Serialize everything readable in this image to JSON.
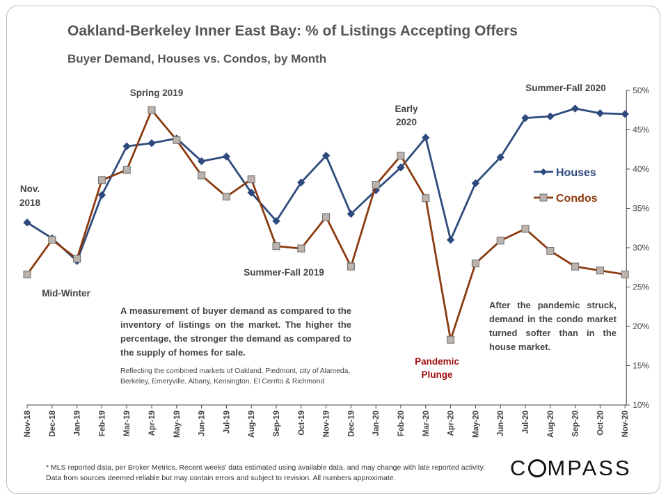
{
  "header": {
    "title": "Oakland-Berkeley Inner East Bay: % of Listings Accepting Offers",
    "subtitle": "Buyer Demand, Houses vs. Condos, by Month"
  },
  "chart_data": {
    "type": "line",
    "title": "Oakland-Berkeley Inner East Bay: % of Listings Accepting Offers",
    "subtitle": "Buyer Demand, Houses vs. Condos, by Month",
    "categories": [
      "Nov-18",
      "Dec-18",
      "Jan-19",
      "Feb-19",
      "Mar-19",
      "Apr-19",
      "May-19",
      "Jun-19",
      "Jul-19",
      "Aug-19",
      "Sep-19",
      "Oct-19",
      "Nov-19",
      "Dec-19",
      "Jan-20",
      "Feb-20",
      "Mar-20",
      "Apr-20",
      "May-20",
      "Jun-20",
      "Jul-20",
      "Aug-20",
      "Sep-20",
      "Oct-20",
      "Nov-20"
    ],
    "series": [
      {
        "name": "Houses",
        "color": "#2e4a7d",
        "marker": "diamond",
        "values": [
          33.2,
          31.2,
          28.3,
          36.7,
          42.9,
          43.3,
          43.9,
          41.0,
          41.6,
          37.0,
          33.4,
          38.3,
          41.7,
          34.3,
          37.3,
          40.2,
          44.0,
          31.0,
          38.2,
          41.5,
          46.5,
          46.7,
          47.7,
          47.1,
          47.0
        ]
      },
      {
        "name": "Condos",
        "color": "#8b3a0f",
        "marker": "square",
        "values": [
          26.6,
          31.0,
          28.6,
          38.6,
          39.9,
          47.5,
          43.7,
          39.2,
          36.5,
          38.7,
          30.2,
          29.9,
          33.9,
          27.6,
          38.0,
          41.7,
          36.3,
          18.3,
          28.0,
          30.9,
          32.4,
          29.6,
          27.6,
          27.1,
          26.6
        ]
      }
    ],
    "y_ticks": [
      "10%",
      "15%",
      "20%",
      "25%",
      "30%",
      "35%",
      "40%",
      "45%",
      "50%"
    ],
    "ylim": [
      10,
      50
    ],
    "y_axis_side": "right",
    "grid": false,
    "legend_placement": "right",
    "annotations": {
      "spring_2019": "Spring 2019",
      "nov_2018_line1": "Nov.",
      "nov_2018_line2": "2018",
      "mid_winter": "Mid-Winter",
      "early_2020_line1": "Early",
      "early_2020_line2": "2020",
      "summer_fall_2020": "Summer-Fall 2020",
      "summer_fall_2019": "Summer-Fall 2019",
      "pandemic_line1": "Pandemic",
      "pandemic_line2": "Plunge",
      "pandemic_color": "#a01010"
    }
  },
  "notes": {
    "description": "A measurement of buyer demand as compared to the inventory of listings on the market. The higher the percentage, the stronger the demand as compared to the supply of homes for sale.",
    "markets": "Reflecting the combined markets of Oakland, Piedmont, city of Alameda, Berkeley, Emeryville, Albany, Kensington, El Cerrito & Richmond",
    "after_pandemic": "After the pandemic struck, demand in the condo market turned softer than in the house market."
  },
  "footer": {
    "footnote": "* MLS reported data, per Broker Metrics. Recent weeks' data estimated using available data, and may change with late reported activity. Data from sources deemed reliable but may contain errors and subject to revision. All numbers approximate.",
    "logo_before": "C",
    "logo_after": "MPASS"
  }
}
